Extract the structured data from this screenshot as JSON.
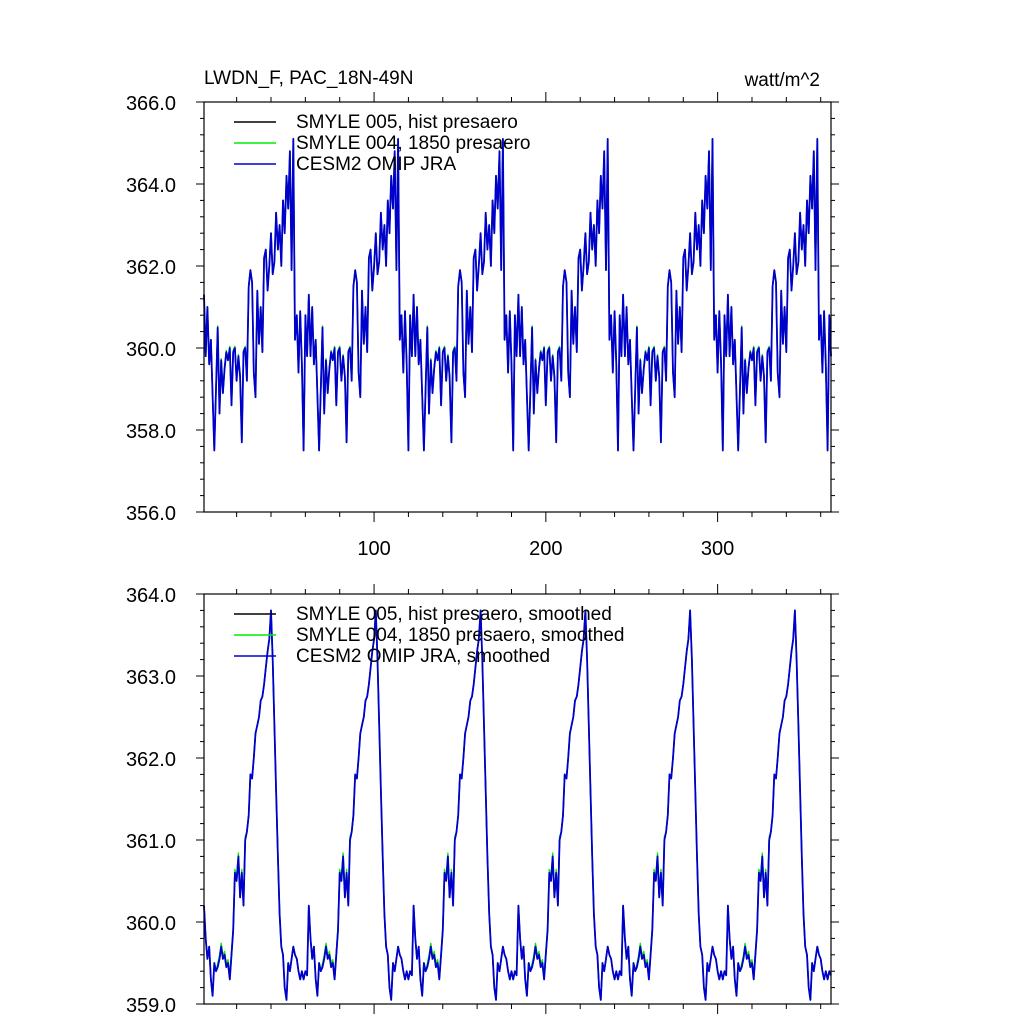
{
  "title_left": "LWDN_F, PAC_18N-49N",
  "title_right": "watt/m^2",
  "colors": {
    "smyle005": "#000000",
    "smyle004": "#00ee00",
    "omip": "#0000cc"
  },
  "chart_data": [
    {
      "type": "line",
      "panel": "top",
      "xlim": [
        1,
        366
      ],
      "ylim": [
        356.0,
        366.0
      ],
      "x_ticks": [
        100,
        200,
        300
      ],
      "x_tick_labels": [
        "100",
        "200",
        "300"
      ],
      "y_ticks": [
        356.0,
        358.0,
        360.0,
        362.0,
        364.0,
        366.0
      ],
      "y_tick_labels": [
        "356.0",
        "358.0",
        "360.0",
        "362.0",
        "364.0",
        "366.0"
      ],
      "legend_position": "top-left",
      "series": [
        {
          "name": "SMYLE 005, hist presaero",
          "color": "#000000"
        },
        {
          "name": "SMYLE 004, 1850 presaero",
          "color": "#00ee00"
        },
        {
          "name": "CESM2 OMIP JRA",
          "color": "#0000cc"
        }
      ],
      "cycle_length": 61,
      "cycle_starts": [
        1,
        62,
        123,
        184,
        245,
        306
      ],
      "cycle_pattern": [
        [
          0,
          361.3
        ],
        [
          1,
          359.8
        ],
        [
          2,
          361.0
        ],
        [
          3,
          359.6
        ],
        [
          4,
          360.2
        ],
        [
          6,
          357.5
        ],
        [
          8,
          360.5
        ],
        [
          9,
          358.4
        ],
        [
          10,
          359.7
        ],
        [
          11,
          358.9
        ],
        [
          12,
          359.5
        ],
        [
          13,
          359.9
        ],
        [
          14,
          359.7
        ],
        [
          15,
          360.0
        ],
        [
          16,
          358.6
        ],
        [
          17,
          359.9
        ],
        [
          18,
          360.0
        ],
        [
          19,
          359.2
        ],
        [
          20,
          359.8
        ],
        [
          21,
          359.3
        ],
        [
          22,
          357.7
        ],
        [
          23,
          359.9
        ],
        [
          24,
          360.0
        ],
        [
          25,
          359.2
        ],
        [
          26,
          361.5
        ],
        [
          27,
          361.9
        ],
        [
          28,
          361.6
        ],
        [
          29,
          359.4
        ],
        [
          30,
          358.8
        ],
        [
          31,
          361.4
        ],
        [
          32,
          360.1
        ],
        [
          33,
          361.0
        ],
        [
          34,
          359.9
        ],
        [
          35,
          362.2
        ],
        [
          36,
          362.4
        ],
        [
          37,
          361.4
        ],
        [
          38,
          362.0
        ],
        [
          39,
          362.8
        ],
        [
          40,
          361.8
        ],
        [
          41,
          362.1
        ],
        [
          42,
          363.3
        ],
        [
          43,
          362.4
        ],
        [
          44,
          363.0
        ],
        [
          45,
          362.0
        ],
        [
          46,
          363.6
        ],
        [
          47,
          362.8
        ],
        [
          48,
          364.2
        ],
        [
          49,
          363.4
        ],
        [
          50,
          364.8
        ],
        [
          51,
          361.9
        ],
        [
          52,
          365.1
        ],
        [
          53,
          360.2
        ],
        [
          54,
          360.8
        ],
        [
          55,
          359.4
        ],
        [
          56,
          360.9
        ],
        [
          57,
          359.6
        ],
        [
          58,
          357.5
        ],
        [
          59,
          360.8
        ],
        [
          60,
          359.8
        ]
      ]
    },
    {
      "type": "line",
      "panel": "bottom",
      "xlim": [
        1,
        366
      ],
      "ylim": [
        359.0,
        364.0
      ],
      "x_ticks": [
        100,
        200,
        300
      ],
      "x_tick_labels": [],
      "y_ticks": [
        359.0,
        360.0,
        361.0,
        362.0,
        363.0,
        364.0
      ],
      "y_tick_labels": [
        "359.0",
        "360.0",
        "361.0",
        "362.0",
        "363.0",
        "364.0"
      ],
      "legend_position": "top-left",
      "series": [
        {
          "name": "SMYLE 005, hist presaero, smoothed",
          "color": "#000000"
        },
        {
          "name": "SMYLE 004, 1850 presaero, smoothed",
          "color": "#00ee00"
        },
        {
          "name": "CESM2 OMIP JRA, smoothed",
          "color": "#0000cc"
        }
      ],
      "cycle_length": 61,
      "cycle_starts": [
        1,
        62,
        123,
        184,
        245,
        306
      ],
      "cycle_pattern": [
        [
          0,
          360.2
        ],
        [
          1,
          359.8
        ],
        [
          2,
          359.55
        ],
        [
          3,
          359.7
        ],
        [
          4,
          359.3
        ],
        [
          5,
          359.1
        ],
        [
          6,
          359.5
        ],
        [
          7,
          359.4
        ],
        [
          8,
          359.45
        ],
        [
          9,
          359.55
        ],
        [
          10,
          359.7
        ],
        [
          11,
          359.55
        ],
        [
          12,
          359.6
        ],
        [
          13,
          359.45
        ],
        [
          14,
          359.5
        ],
        [
          15,
          359.3
        ],
        [
          16,
          359.6
        ],
        [
          17,
          359.9
        ],
        [
          18,
          360.6
        ],
        [
          19,
          360.5
        ],
        [
          20,
          360.8
        ],
        [
          21,
          360.3
        ],
        [
          22,
          360.6
        ],
        [
          23,
          360.2
        ],
        [
          24,
          361.0
        ],
        [
          25,
          361.1
        ],
        [
          26,
          361.3
        ],
        [
          27,
          361.8
        ],
        [
          28,
          361.75
        ],
        [
          29,
          362.0
        ],
        [
          30,
          362.3
        ],
        [
          31,
          362.4
        ],
        [
          32,
          362.5
        ],
        [
          33,
          362.7
        ],
        [
          34,
          362.75
        ],
        [
          35,
          362.9
        ],
        [
          36,
          363.1
        ],
        [
          37,
          363.3
        ],
        [
          38,
          363.45
        ],
        [
          39,
          363.8
        ],
        [
          40,
          363.2
        ],
        [
          41,
          362.4
        ],
        [
          42,
          361.6
        ],
        [
          43,
          360.8
        ],
        [
          44,
          360.1
        ],
        [
          45,
          359.7
        ],
        [
          46,
          359.6
        ],
        [
          47,
          359.2
        ],
        [
          48,
          359.05
        ],
        [
          49,
          359.5
        ],
        [
          50,
          359.4
        ],
        [
          51,
          359.55
        ],
        [
          52,
          359.7
        ],
        [
          53,
          359.6
        ],
        [
          54,
          359.55
        ],
        [
          55,
          359.4
        ],
        [
          56,
          359.3
        ],
        [
          57,
          359.4
        ],
        [
          58,
          359.3
        ],
        [
          59,
          359.4
        ],
        [
          60,
          359.35
        ]
      ]
    }
  ]
}
